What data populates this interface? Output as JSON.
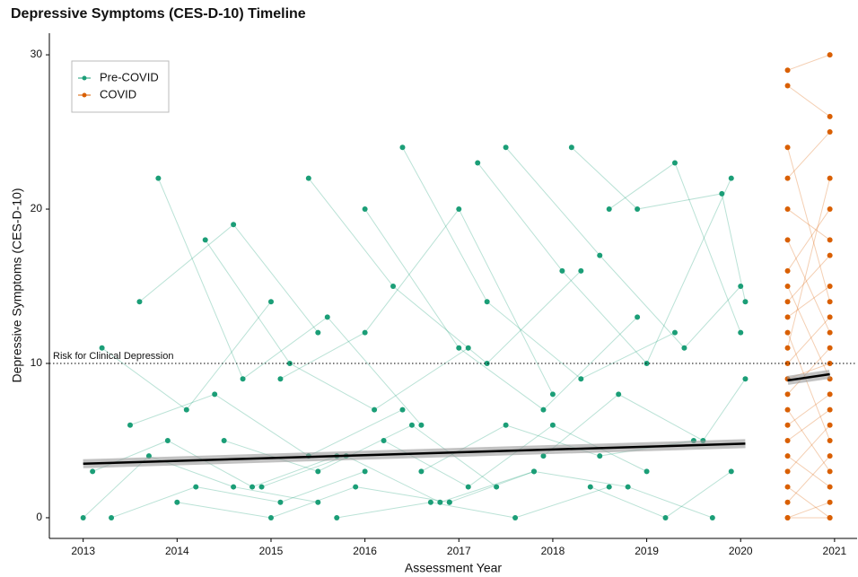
{
  "chart_data": {
    "type": "scatter",
    "title": "Depressive Symptoms (CES-D-10) Timeline",
    "xlabel": "Assessment Year",
    "ylabel": "Depressive Symptoms (CES-D-10)",
    "xlim": [
      2012.64,
      2021.24
    ],
    "ylim": [
      -1.34,
      31.4
    ],
    "xticks": [
      2013,
      2014,
      2015,
      2016,
      2017,
      2018,
      2019,
      2020,
      2021
    ],
    "yticks": [
      0,
      10,
      20,
      30
    ],
    "grid": false,
    "legend": "top-left",
    "reference_line": {
      "value": 10,
      "label": "Risk for Clinical Depression"
    },
    "series": [
      {
        "name": "Pre-COVID",
        "color": "#1b9e77",
        "trend": {
          "x": [
            2013,
            2020.05
          ],
          "values": [
            3.5,
            4.8
          ]
        },
        "participants": [
          {
            "x": [
              2013.1,
              2013.9,
              2014.8,
              2015.7
            ],
            "values": [
              3,
              5,
              2,
              4
            ]
          },
          {
            "x": [
              2013.3,
              2014.2,
              2015.1,
              2016.0
            ],
            "values": [
              0,
              2,
              1,
              3
            ]
          },
          {
            "x": [
              2013.5,
              2014.4,
              2015.4,
              2016.4
            ],
            "values": [
              6,
              8,
              4,
              7
            ]
          },
          {
            "x": [
              2013.8,
              2014.7,
              2015.6,
              2016.6
            ],
            "values": [
              22,
              9,
              13,
              6
            ]
          },
          {
            "x": [
              2014.0,
              2015.0,
              2015.9,
              2016.9
            ],
            "values": [
              1,
              0,
              2,
              1
            ]
          },
          {
            "x": [
              2014.3,
              2015.2,
              2016.1,
              2017.1
            ],
            "values": [
              18,
              10,
              7,
              11
            ]
          },
          {
            "x": [
              2014.5,
              2015.5,
              2016.5,
              2017.4
            ],
            "values": [
              5,
              3,
              6,
              2
            ]
          },
          {
            "x": [
              2014.9,
              2015.8,
              2016.8,
              2017.8
            ],
            "values": [
              2,
              4,
              1,
              3
            ]
          },
          {
            "x": [
              2015.1,
              2016.0,
              2017.0,
              2018.0
            ],
            "values": [
              9,
              12,
              20,
              8
            ]
          },
          {
            "x": [
              2015.4,
              2016.3,
              2017.3,
              2018.3
            ],
            "values": [
              22,
              15,
              10,
              16
            ]
          },
          {
            "x": [
              2015.7,
              2016.7,
              2017.6,
              2018.6
            ],
            "values": [
              0,
              1,
              0,
              2
            ]
          },
          {
            "x": [
              2016.0,
              2017.0,
              2017.9,
              2018.9
            ],
            "values": [
              20,
              11,
              7,
              13
            ]
          },
          {
            "x": [
              2016.4,
              2017.3,
              2018.3,
              2019.3
            ],
            "values": [
              24,
              14,
              9,
              12
            ]
          },
          {
            "x": [
              2016.6,
              2017.5,
              2018.5,
              2019.5
            ],
            "values": [
              3,
              6,
              4,
              5
            ]
          },
          {
            "x": [
              2016.9,
              2017.8,
              2018.8,
              2019.7
            ],
            "values": [
              1,
              3,
              2,
              0
            ]
          },
          {
            "x": [
              2017.2,
              2018.1,
              2019.0,
              2019.9
            ],
            "values": [
              23,
              16,
              10,
              22
            ]
          },
          {
            "x": [
              2017.5,
              2018.5,
              2019.4,
              2020.0
            ],
            "values": [
              24,
              17,
              11,
              15
            ]
          },
          {
            "x": [
              2017.9,
              2018.7,
              2019.6,
              2020.05
            ],
            "values": [
              4,
              8,
              5,
              9
            ]
          },
          {
            "x": [
              2018.2,
              2018.9,
              2019.8,
              2020.05
            ],
            "values": [
              24,
              20,
              21,
              14
            ]
          },
          {
            "x": [
              2018.4,
              2019.2,
              2019.9
            ],
            "values": [
              2,
              0,
              3
            ]
          },
          {
            "x": [
              2013.2,
              2014.1,
              2015.0
            ],
            "values": [
              11,
              7,
              14
            ]
          },
          {
            "x": [
              2013.6,
              2014.6,
              2015.5
            ],
            "values": [
              14,
              19,
              12
            ]
          },
          {
            "x": [
              2018.6,
              2019.3,
              2020.0
            ],
            "values": [
              20,
              23,
              12
            ]
          },
          {
            "x": [
              2013.0,
              2013.7,
              2014.6,
              2015.5
            ],
            "values": [
              0,
              4,
              2,
              1
            ]
          },
          {
            "x": [
              2016.2,
              2017.1,
              2018.0,
              2019.0
            ],
            "values": [
              5,
              2,
              6,
              3
            ]
          }
        ]
      },
      {
        "name": "COVID",
        "color": "#d95f02",
        "trend": {
          "x": [
            2020.5,
            2020.95
          ],
          "values": [
            8.9,
            9.3
          ]
        },
        "participants": [
          {
            "x": [
              2020.5,
              2020.95
            ],
            "values": [
              29,
              30
            ]
          },
          {
            "x": [
              2020.5,
              2020.95
            ],
            "values": [
              28,
              26
            ]
          },
          {
            "x": [
              2020.5,
              2020.95
            ],
            "values": [
              24,
              14
            ]
          },
          {
            "x": [
              2020.5,
              2020.95
            ],
            "values": [
              22,
              25
            ]
          },
          {
            "x": [
              2020.5,
              2020.95
            ],
            "values": [
              20,
              18
            ]
          },
          {
            "x": [
              2020.5,
              2020.95
            ],
            "values": [
              18,
              12
            ]
          },
          {
            "x": [
              2020.5,
              2020.95
            ],
            "values": [
              16,
              20
            ]
          },
          {
            "x": [
              2020.5,
              2020.95
            ],
            "values": [
              15,
              9
            ]
          },
          {
            "x": [
              2020.5,
              2020.95
            ],
            "values": [
              14,
              17
            ]
          },
          {
            "x": [
              2020.5,
              2020.95
            ],
            "values": [
              12,
              5
            ]
          },
          {
            "x": [
              2020.5,
              2020.95
            ],
            "values": [
              10,
              13
            ]
          },
          {
            "x": [
              2020.5,
              2020.95
            ],
            "values": [
              8,
              11
            ]
          },
          {
            "x": [
              2020.5,
              2020.95
            ],
            "values": [
              7,
              3
            ]
          },
          {
            "x": [
              2020.5,
              2020.95
            ],
            "values": [
              6,
              8
            ]
          },
          {
            "x": [
              2020.5,
              2020.95
            ],
            "values": [
              5,
              7
            ]
          },
          {
            "x": [
              2020.5,
              2020.95
            ],
            "values": [
              4,
              2
            ]
          },
          {
            "x": [
              2020.5,
              2020.95
            ],
            "values": [
              3,
              6
            ]
          },
          {
            "x": [
              2020.5,
              2020.95
            ],
            "values": [
              2,
              0
            ]
          },
          {
            "x": [
              2020.5,
              2020.95
            ],
            "values": [
              1,
              4
            ]
          },
          {
            "x": [
              2020.5,
              2020.95
            ],
            "values": [
              0,
              1
            ]
          },
          {
            "x": [
              2020.5,
              2020.95
            ],
            "values": [
              9,
              10
            ]
          },
          {
            "x": [
              2020.5,
              2020.95
            ],
            "values": [
              11,
              22
            ]
          },
          {
            "x": [
              2020.5,
              2020.95
            ],
            "values": [
              13,
              15
            ]
          },
          {
            "x": [
              2020.5,
              2020.95
            ],
            "values": [
              0,
              0
            ]
          }
        ]
      }
    ]
  }
}
